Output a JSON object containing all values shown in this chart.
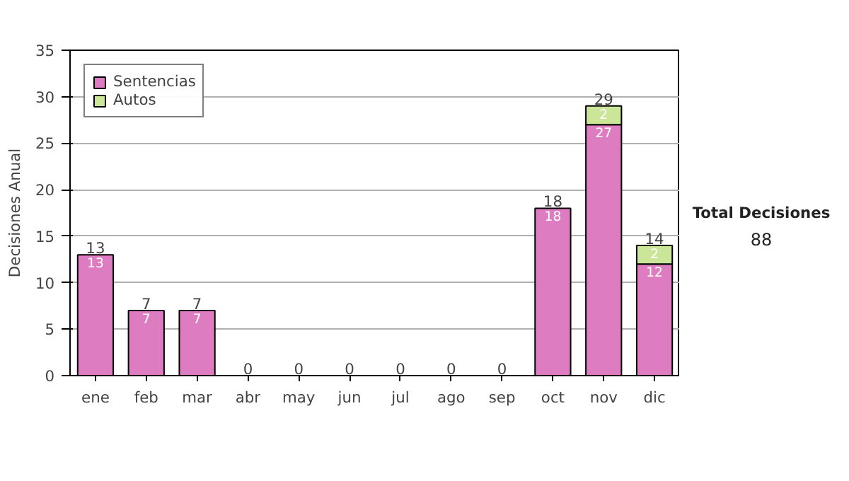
{
  "chart_data": {
    "type": "bar",
    "ylabel": "Decisiones Anual",
    "stacked": true,
    "categories": [
      "ene",
      "feb",
      "mar",
      "abr",
      "may",
      "jun",
      "jul",
      "ago",
      "sep",
      "oct",
      "nov",
      "dic"
    ],
    "series": [
      {
        "name": "Sentencias",
        "color": "#dd7cc0",
        "values": [
          13,
          7,
          7,
          0,
          0,
          0,
          0,
          0,
          0,
          18,
          27,
          12
        ],
        "value_labels": [
          "13",
          "7",
          "7",
          null,
          null,
          null,
          null,
          null,
          null,
          "18",
          "27",
          "12"
        ]
      },
      {
        "name": "Autos",
        "color": "#cce699",
        "values": [
          0,
          0,
          0,
          0,
          0,
          0,
          0,
          0,
          0,
          0,
          2,
          2
        ],
        "value_labels": [
          null,
          null,
          null,
          null,
          null,
          null,
          null,
          null,
          null,
          null,
          "2",
          "2"
        ]
      }
    ],
    "totals": [
      "13",
      "7",
      "7",
      "0",
      "0",
      "0",
      "0",
      "0",
      "0",
      "18",
      "29",
      "14"
    ],
    "ylim": [
      0,
      35
    ],
    "yticks": [
      0,
      5,
      10,
      15,
      20,
      25,
      30,
      35
    ],
    "grid": "y",
    "legend": "top left",
    "annotations": [
      "Total Decisiones",
      "88"
    ]
  }
}
